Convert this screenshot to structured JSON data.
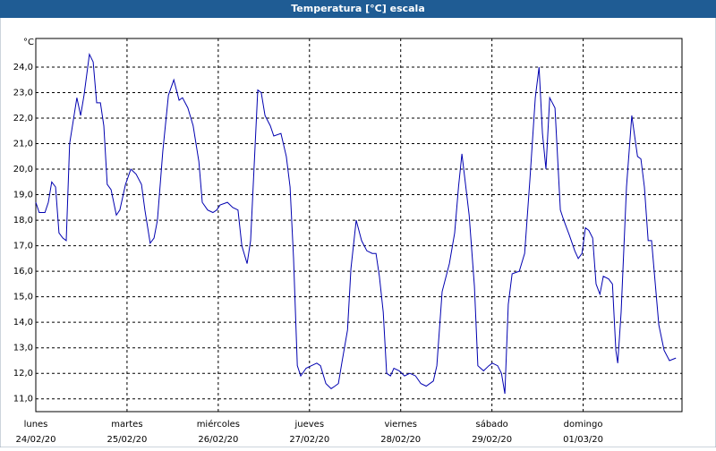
{
  "chart_data": {
    "type": "line",
    "title": "Temperatura [°C] escala",
    "y_unit": "°C",
    "x": [
      0,
      0.9,
      2.4,
      3.3,
      4.2,
      5.2,
      6.1,
      7.1,
      8.0,
      8.9,
      10.8,
      11.8,
      12.7,
      14.1,
      15.1,
      16.0,
      17.0,
      17.9,
      18.8,
      19.8,
      21.2,
      22.1,
      23.6,
      25.0,
      26.4,
      27.8,
      28.7,
      30.1,
      31.1,
      32.0,
      33.4,
      34.9,
      36.3,
      37.7,
      38.6,
      40.0,
      41.4,
      42.9,
      43.8,
      45.2,
      46.6,
      47.6,
      48.5,
      50.4,
      51.8,
      53.2,
      54.2,
      55.6,
      56.5,
      58.4,
      59.3,
      60.3,
      61.7,
      62.6,
      64.5,
      65.9,
      66.9,
      67.8,
      68.8,
      69.7,
      71.1,
      72.5,
      73.9,
      74.9,
      76.3,
      77.7,
      78.7,
      79.6,
      80.5,
      82.0,
      82.9,
      84.3,
      85.7,
      87.1,
      88.5,
      89.5,
      90.4,
      91.4,
      92.3,
      93.3,
      94.2,
      95.6,
      97.0,
      98.4,
      99.9,
      101.3,
      102.7,
      104.6,
      105.5,
      106.9,
      108.8,
      110.2,
      111.2,
      112.1,
      114.0,
      115.4,
      116.3,
      117.8,
      119.2,
      120.1,
      121.5,
      122.5,
      123.4,
      124.3,
      125.3,
      127.2,
      128.6,
      130.0,
      131.4,
      132.4,
      133.3,
      134.2,
      135.2,
      136.6,
      138.0,
      138.9,
      140.4,
      141.8,
      142.7,
      143.7,
      144.6,
      145.5,
      146.5,
      147.4,
      148.4,
      149.3,
      150.7,
      151.7,
      152.6,
      153.1,
      154.0,
      155.4,
      156.8,
      158.3,
      159.2,
      160.1,
      161.1,
      162.0,
      163.9,
      165.3,
      166.7,
      168.4
    ],
    "series": [
      {
        "name": "Temperatura",
        "color": "#0000b0",
        "values": [
          18.7,
          18.3,
          18.3,
          18.7,
          19.5,
          19.3,
          17.5,
          17.3,
          17.2,
          21.0,
          22.8,
          22.1,
          22.9,
          24.5,
          24.2,
          22.6,
          22.6,
          21.7,
          19.4,
          19.2,
          18.2,
          18.4,
          19.4,
          20.0,
          19.8,
          19.4,
          18.4,
          17.1,
          17.3,
          18.0,
          20.7,
          22.9,
          23.5,
          22.7,
          22.8,
          22.4,
          21.7,
          20.3,
          18.7,
          18.4,
          18.3,
          18.4,
          18.6,
          18.7,
          18.5,
          18.4,
          17.0,
          16.3,
          17.2,
          23.1,
          23.0,
          22.1,
          21.7,
          21.3,
          21.4,
          20.5,
          19.3,
          16.5,
          12.3,
          11.9,
          12.2,
          12.3,
          12.4,
          12.3,
          11.6,
          11.4,
          11.5,
          11.6,
          12.4,
          13.7,
          16.1,
          18.0,
          17.2,
          16.8,
          16.7,
          16.7,
          15.8,
          14.4,
          12.0,
          11.9,
          12.2,
          12.1,
          11.9,
          12.0,
          11.9,
          11.6,
          11.5,
          11.7,
          12.3,
          15.2,
          16.3,
          17.5,
          19.3,
          20.6,
          18.2,
          15.4,
          12.3,
          12.1,
          12.3,
          12.4,
          12.3,
          12.0,
          11.2,
          14.7,
          15.9,
          16.0,
          16.7,
          19.6,
          22.8,
          24.0,
          21.4,
          20.0,
          22.8,
          22.4,
          18.4,
          18.0,
          17.4,
          16.8,
          16.5,
          16.7,
          17.7,
          17.6,
          17.3,
          15.5,
          15.1,
          15.8,
          15.7,
          15.5,
          12.9,
          12.4,
          14.4,
          19.3,
          22.1,
          20.5,
          20.4,
          19.3,
          17.2,
          17.2,
          13.9,
          12.9,
          12.5,
          12.6
        ]
      }
    ],
    "xlim": [
      0,
      170
    ],
    "xticks": [
      {
        "value": 0,
        "label": "lunes"
      },
      {
        "value": 24,
        "label": "martes"
      },
      {
        "value": 48,
        "label": "miércoles"
      },
      {
        "value": 72,
        "label": "jueves"
      },
      {
        "value": 96,
        "label": "viernes"
      },
      {
        "value": 120,
        "label": "sábado"
      },
      {
        "value": 144,
        "label": "domingo"
      }
    ],
    "xtick_dates": [
      "24/02/20",
      "25/02/20",
      "26/02/20",
      "27/02/20",
      "28/02/20",
      "29/02/20",
      "01/03/20"
    ],
    "ylim": [
      10.5,
      25.12
    ],
    "yticks": [
      {
        "value": 11,
        "label": "11,0"
      },
      {
        "value": 12,
        "label": "12,0"
      },
      {
        "value": 13,
        "label": "13,0"
      },
      {
        "value": 14,
        "label": "14,0"
      },
      {
        "value": 15,
        "label": "15,0"
      },
      {
        "value": 16,
        "label": "16,0"
      },
      {
        "value": 17,
        "label": "17,0"
      },
      {
        "value": 18,
        "label": "18,0"
      },
      {
        "value": 19,
        "label": "19,0"
      },
      {
        "value": 20,
        "label": "20,0"
      },
      {
        "value": 21,
        "label": "21,0"
      },
      {
        "value": 22,
        "label": "22,0"
      },
      {
        "value": 23,
        "label": "23,0"
      },
      {
        "value": 24,
        "label": "24,0"
      }
    ],
    "grid": true
  }
}
